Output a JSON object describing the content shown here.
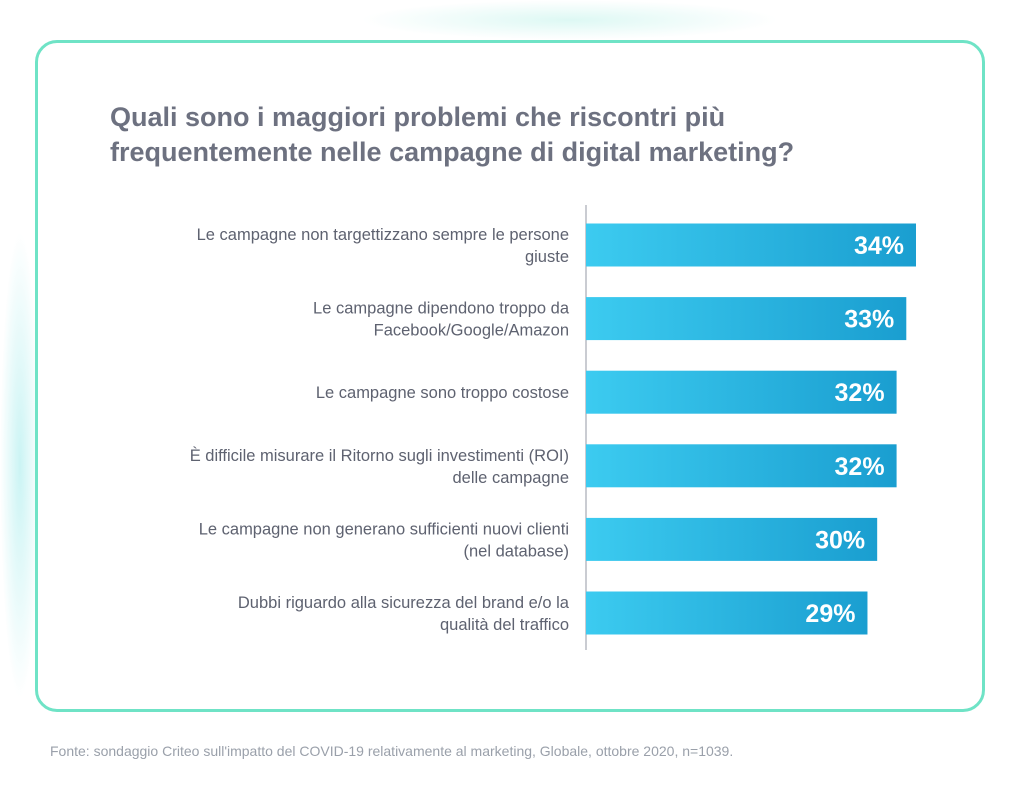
{
  "title": "Quali sono i maggiori problemi che riscontri più frequentemente nelle campagne di digital marketing?",
  "source": "Fonte: sondaggio Criteo sull'impatto del COVID-19 relativamente al marketing, Globale, ottobre 2020, n=1039.",
  "colors": {
    "card_border": "#6fe3c6",
    "bar_light": "#3ccbf0",
    "bar_dark": "#1a9ed0",
    "title_text": "#6d7180",
    "label_text": "#5e6270",
    "value_text": "#ffffff",
    "axis_line": "#b8bcc4"
  },
  "chart_data": {
    "type": "bar",
    "orientation": "horizontal",
    "categories": [
      [
        "Le campagne non targettizzano sempre le persone",
        "giuste"
      ],
      [
        "Le campagne dipendono troppo da",
        "Facebook/Google/Amazon"
      ],
      [
        "Le campagne sono troppo costose"
      ],
      [
        "È difficile misurare il Ritorno sugli investimenti (ROI)",
        "delle campagne"
      ],
      [
        "Le campagne non generano sufficienti nuovi clienti",
        "(nel database)"
      ],
      [
        "Dubbi riguardo alla sicurezza del brand e/o la",
        "qualità del traffico"
      ]
    ],
    "values": [
      34,
      33,
      32,
      32,
      30,
      29
    ],
    "value_labels": [
      "34%",
      "33%",
      "32%",
      "32%",
      "30%",
      "29%"
    ],
    "unit": "%",
    "grid": false,
    "legend": "none"
  }
}
